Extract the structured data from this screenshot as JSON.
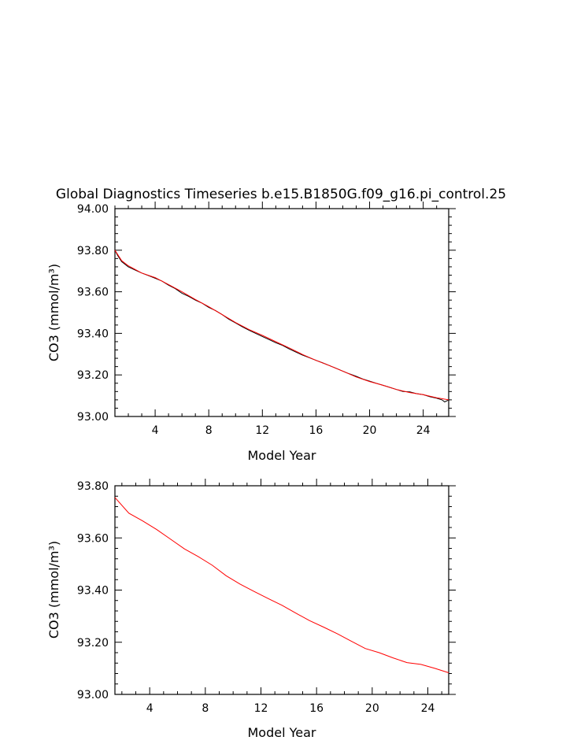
{
  "title": "Global Diagnostics Timeseries b.e15.B1850G.f09_g16.pi_control.25",
  "colors": {
    "monthly": "#000000",
    "annual": "#ff0000"
  },
  "chart_data": [
    {
      "type": "line",
      "xlabel": "Model Year",
      "ylabel": "CO3 (mmol/m³)",
      "xlim": [
        1,
        25.9
      ],
      "ylim": [
        93.0,
        94.0
      ],
      "xticks": [
        4,
        8,
        12,
        16,
        20,
        24
      ],
      "yticks": [
        93.0,
        93.2,
        93.4,
        93.6,
        93.8,
        94.0
      ],
      "ytick_labels": [
        "93.00",
        "93.20",
        "93.40",
        "93.60",
        "93.80",
        "94.00"
      ],
      "series": [
        {
          "color": "#000000",
          "x": [
            1.0,
            1.2,
            1.5,
            2.0,
            2.5,
            3.0,
            3.5,
            4.0,
            4.5,
            5.0,
            5.5,
            6.0,
            6.5,
            7.0,
            7.5,
            8.0,
            8.5,
            9.0,
            9.5,
            10.0,
            10.5,
            11.0,
            11.5,
            12.0,
            12.5,
            13.0,
            13.5,
            14.0,
            14.5,
            15.0,
            15.5,
            16.0,
            16.5,
            17.0,
            17.5,
            18.0,
            18.5,
            19.0,
            19.5,
            20.0,
            20.5,
            21.0,
            21.5,
            22.0,
            22.5,
            23.0,
            23.5,
            24.0,
            24.5,
            25.0,
            25.4,
            25.6,
            25.9
          ],
          "values": [
            93.8,
            93.775,
            93.745,
            93.72,
            93.705,
            93.69,
            93.678,
            93.665,
            93.652,
            93.632,
            93.615,
            93.593,
            93.578,
            93.56,
            93.545,
            93.525,
            93.51,
            93.49,
            93.468,
            93.45,
            93.432,
            93.415,
            93.4,
            93.385,
            93.37,
            93.355,
            93.342,
            93.325,
            93.31,
            93.295,
            93.283,
            93.27,
            93.258,
            93.245,
            93.232,
            93.218,
            93.205,
            93.193,
            93.18,
            93.17,
            93.16,
            93.15,
            93.14,
            93.13,
            93.12,
            93.118,
            93.11,
            93.105,
            93.095,
            93.088,
            93.08,
            93.07,
            93.08
          ]
        },
        {
          "color": "#ff0000",
          "x": [
            1.0,
            1.5,
            2.0,
            3.0,
            4.0,
            5.0,
            6.0,
            7.0,
            8.0,
            9.0,
            10.0,
            11.0,
            12.0,
            13.0,
            14.0,
            15.0,
            16.0,
            17.0,
            18.0,
            19.0,
            20.0,
            21.0,
            22.0,
            23.0,
            24.0,
            25.0,
            25.9
          ],
          "values": [
            93.8,
            93.75,
            93.725,
            93.69,
            93.668,
            93.635,
            93.6,
            93.563,
            93.528,
            93.49,
            93.452,
            93.418,
            93.39,
            93.36,
            93.33,
            93.298,
            93.27,
            93.245,
            93.218,
            93.19,
            93.168,
            93.15,
            93.13,
            93.115,
            93.105,
            93.09,
            93.08
          ]
        }
      ]
    },
    {
      "type": "line",
      "xlabel": "Model Year",
      "ylabel": "CO3 (mmol/m³)",
      "xlim": [
        1.5,
        25.5
      ],
      "ylim": [
        93.0,
        93.8
      ],
      "xticks": [
        4,
        8,
        12,
        16,
        20,
        24
      ],
      "yticks": [
        93.0,
        93.2,
        93.4,
        93.6,
        93.8
      ],
      "ytick_labels": [
        "93.00",
        "93.20",
        "93.40",
        "93.60",
        "93.80"
      ],
      "series": [
        {
          "color": "#ff0000",
          "x": [
            1.5,
            2.5,
            3.5,
            4.5,
            5.5,
            6.5,
            7.5,
            8.5,
            9.5,
            10.5,
            11.5,
            12.5,
            13.5,
            14.5,
            15.5,
            16.5,
            17.5,
            18.5,
            19.5,
            20.5,
            21.5,
            22.5,
            23.5,
            24.5,
            25.5
          ],
          "values": [
            93.755,
            93.695,
            93.665,
            93.632,
            93.595,
            93.558,
            93.528,
            93.495,
            93.455,
            93.423,
            93.395,
            93.368,
            93.342,
            93.312,
            93.283,
            93.258,
            93.232,
            93.204,
            93.176,
            93.16,
            93.14,
            93.122,
            93.115,
            93.1,
            93.083
          ]
        }
      ]
    }
  ]
}
